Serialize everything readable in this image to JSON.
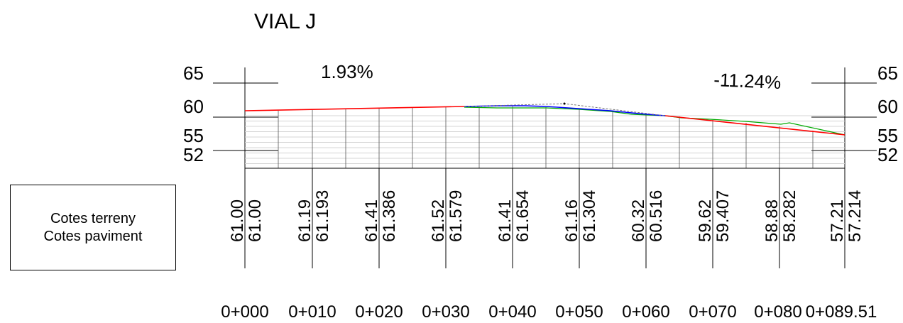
{
  "title": "VIAL J",
  "slopes": {
    "left": "1.93%",
    "right": "-11.24%"
  },
  "elevation_labels": [
    "65",
    "60",
    "55",
    "52"
  ],
  "legend": {
    "line1": "Cotes terreny",
    "line2": "Cotes paviment"
  },
  "stations": [
    {
      "label": "0+000",
      "terreny": "61.00",
      "paviment": "61.00"
    },
    {
      "label": "0+010",
      "terreny": "61.19",
      "paviment": "61.193"
    },
    {
      "label": "0+020",
      "terreny": "61.41",
      "paviment": "61.386"
    },
    {
      "label": "0+030",
      "terreny": "61.52",
      "paviment": "61.579"
    },
    {
      "label": "0+040",
      "terreny": "61.41",
      "paviment": "61.654"
    },
    {
      "label": "0+050",
      "terreny": "61.16",
      "paviment": "61.304"
    },
    {
      "label": "0+060",
      "terreny": "60.32",
      "paviment": "60.516"
    },
    {
      "label": "0+070",
      "terreny": "59.62",
      "paviment": "59.407"
    },
    {
      "label": "0+080",
      "terreny": "58.88",
      "paviment": "58.282"
    },
    {
      "label": "0+089.51",
      "terreny": "57.21",
      "paviment": "57.214"
    }
  ],
  "colors": {
    "paviment_line": "#ff0000",
    "vertical_curve": "#0000ff",
    "terreny_line": "#00aa00",
    "grid": "#cccccc"
  }
}
